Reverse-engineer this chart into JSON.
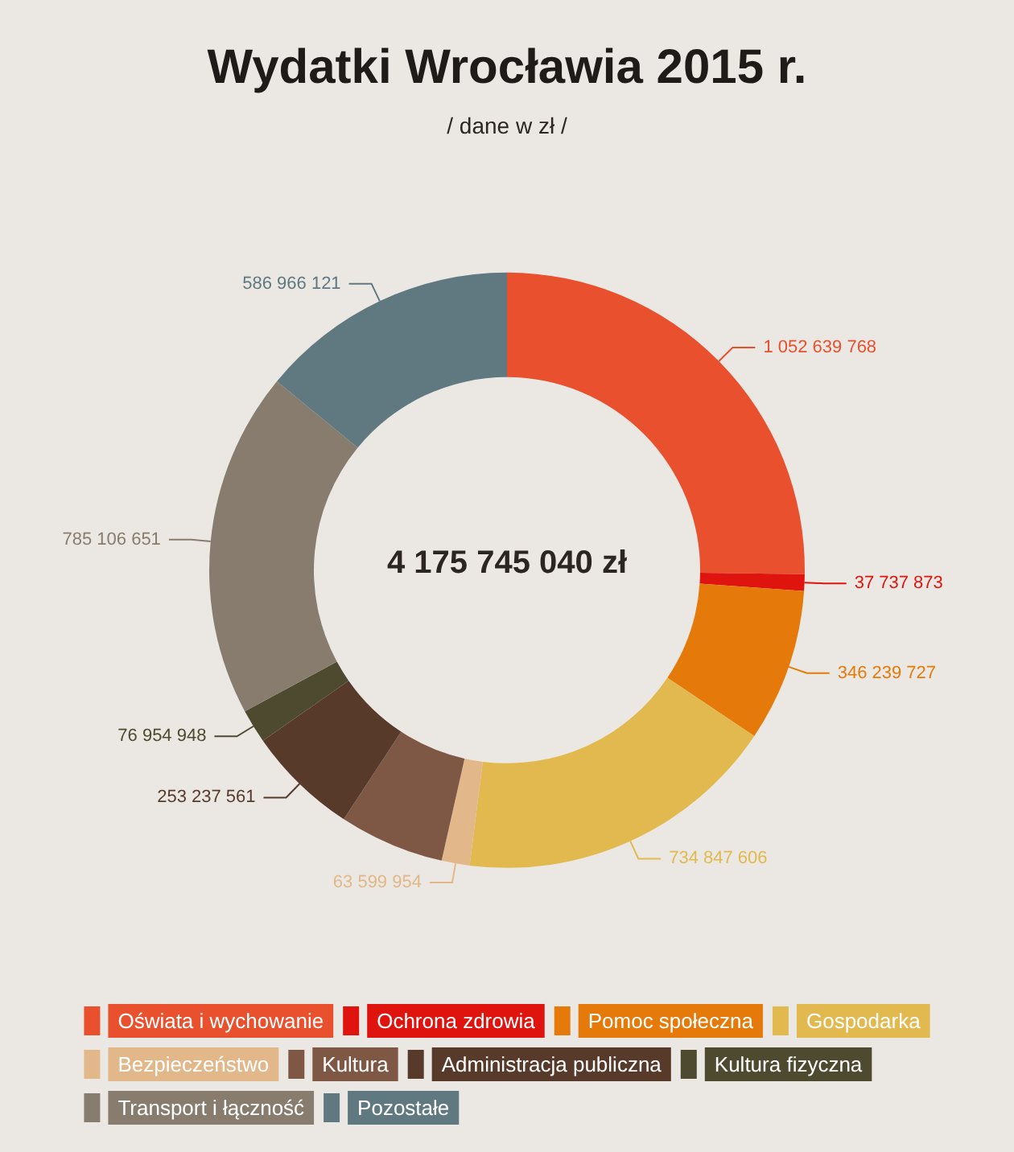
{
  "chart_data": {
    "type": "donut",
    "title": "Wydatki Wrocławia 2015 r.",
    "subtitle": "/ dane w zł /",
    "annotations": [
      "4 175 745 040 zł"
    ],
    "categories": [
      "Oświata i wychowanie",
      "Ochrona zdrowia",
      "Pomoc społeczna",
      "Gospodarka",
      "Bezpieczeństwo",
      "Kultura",
      "Administracja publiczna",
      "Kultura fizyczna",
      "Transport i łączność",
      "Pozostałe"
    ],
    "values": [
      1052639768,
      37737873,
      346239727,
      734847606,
      63599954,
      238414831,
      253237561,
      76954948,
      785106651,
      586966121
    ],
    "value_labels": [
      "1 052 639 768",
      "37 737 873",
      "346 239 727",
      "734 847 606",
      "63 599 954",
      null,
      "253 237 561",
      "76 954 948",
      "785 106 651",
      "586 966 121"
    ],
    "colors": [
      "#e8502e",
      "#e0140f",
      "#e57a0a",
      "#e2b94e",
      "#e2b88a",
      "#7f5845",
      "#573a2a",
      "#4e4a30",
      "#877c6e",
      "#607880"
    ],
    "legend": "bottom"
  }
}
